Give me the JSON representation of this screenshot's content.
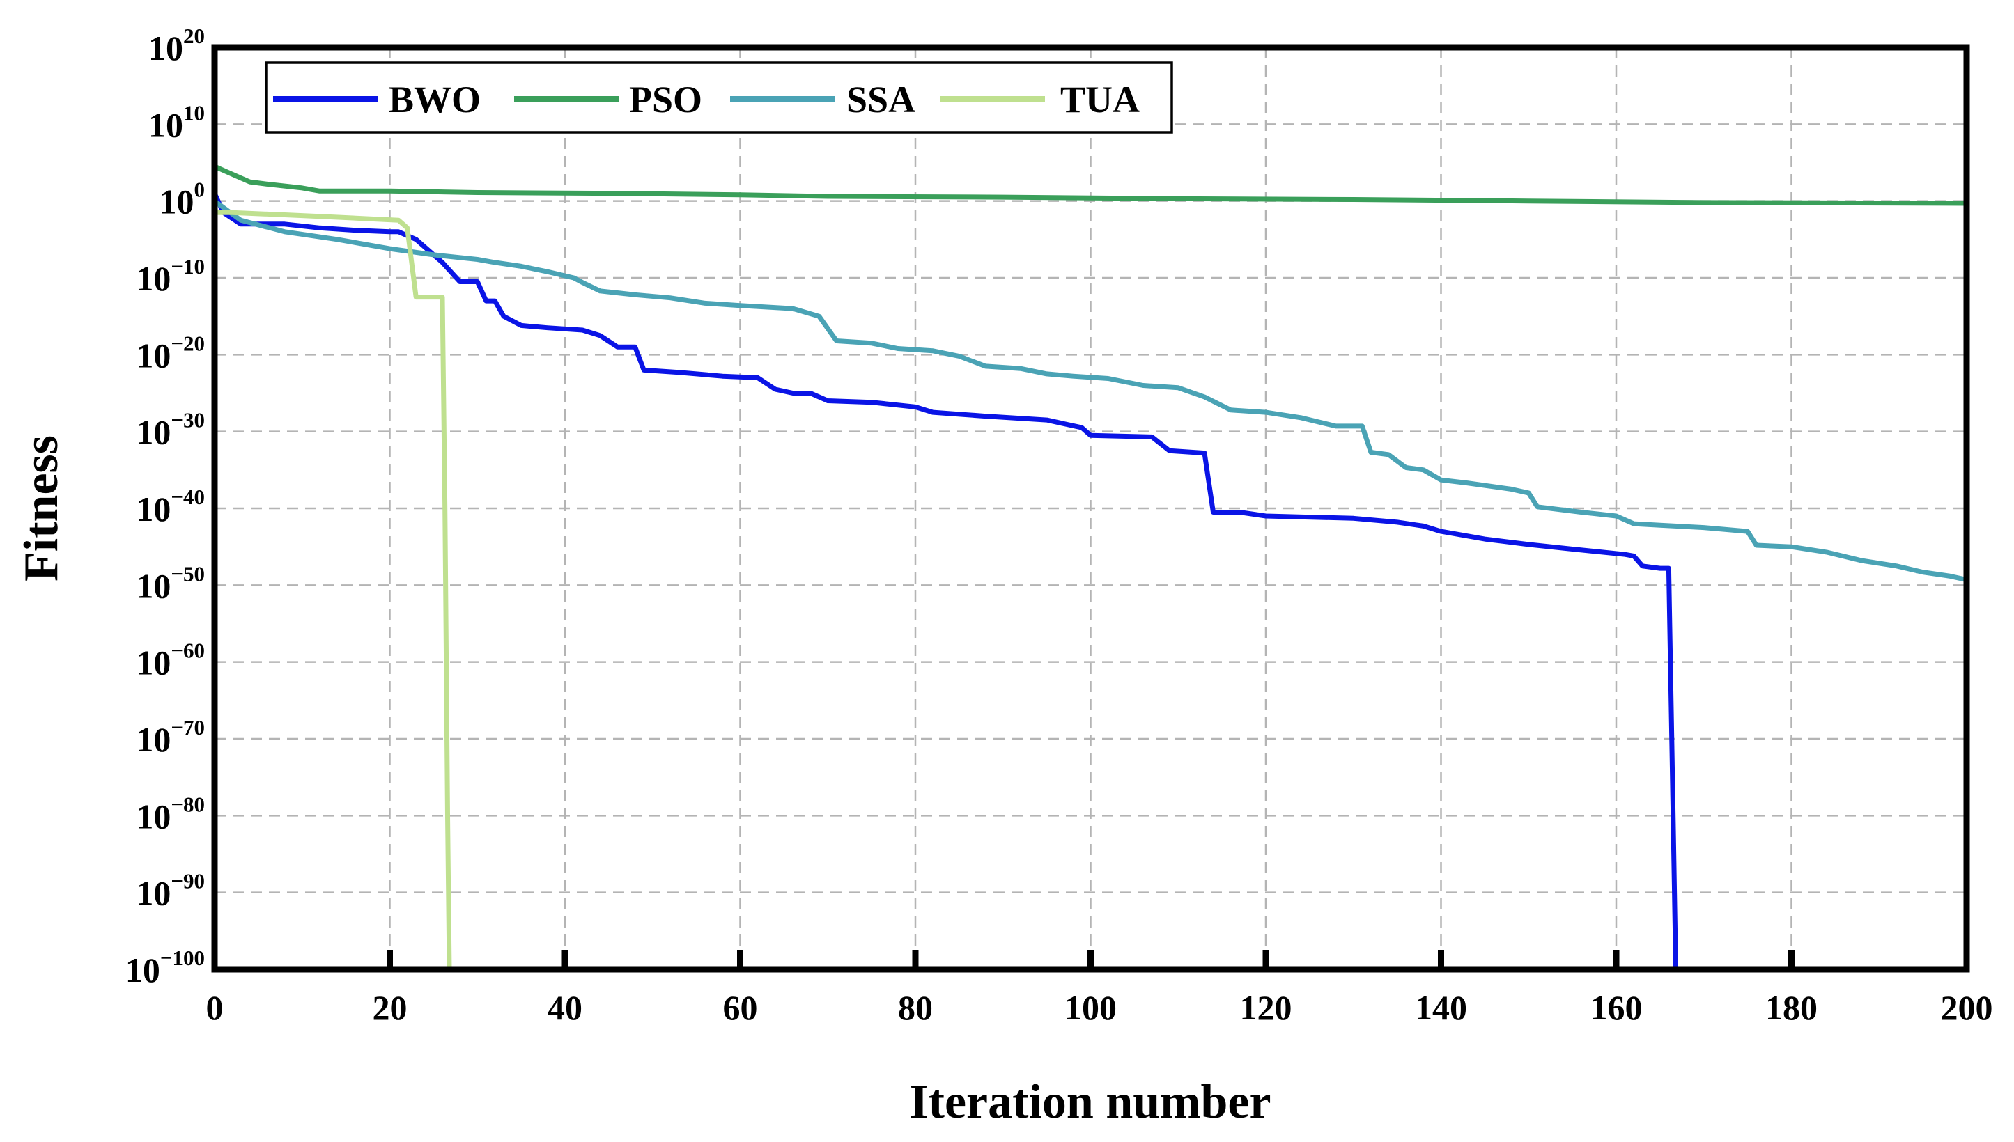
{
  "chart_data": {
    "type": "line",
    "title": "",
    "xlabel": "Iteration number",
    "ylabel": "Fitness",
    "xlim": [
      0,
      200
    ],
    "ylim_exponent": [
      -100,
      20
    ],
    "yscale": "log",
    "grid": true,
    "legend_position": "top-left",
    "x_ticks": [
      "0",
      "20",
      "40",
      "60",
      "80",
      "100",
      "120",
      "140",
      "160",
      "180",
      "200"
    ],
    "y_ticks": [
      {
        "base": "10",
        "exp": "20"
      },
      {
        "base": "10",
        "exp": "10"
      },
      {
        "base": "10",
        "exp": "0"
      },
      {
        "base": "10",
        "exp": "−10"
      },
      {
        "base": "10",
        "exp": "−20"
      },
      {
        "base": "10",
        "exp": "−30"
      },
      {
        "base": "10",
        "exp": "−40"
      },
      {
        "base": "10",
        "exp": "−50"
      },
      {
        "base": "10",
        "exp": "−60"
      },
      {
        "base": "10",
        "exp": "−70"
      },
      {
        "base": "10",
        "exp": "−80"
      },
      {
        "base": "10",
        "exp": "−90"
      },
      {
        "base": "10",
        "exp": "−100"
      }
    ],
    "series": [
      {
        "name": "BWO",
        "color": "#0a14e6",
        "points_x_log10y": [
          [
            0,
            1
          ],
          [
            1,
            -1.5
          ],
          [
            3,
            -3
          ],
          [
            8,
            -3
          ],
          [
            12,
            -3.5
          ],
          [
            16,
            -3.8
          ],
          [
            20,
            -4
          ],
          [
            21,
            -4
          ],
          [
            23,
            -5
          ],
          [
            26,
            -8
          ],
          [
            28,
            -10.5
          ],
          [
            30,
            -10.5
          ],
          [
            31,
            -13
          ],
          [
            32,
            -13
          ],
          [
            33,
            -15
          ],
          [
            35,
            -16.2
          ],
          [
            38,
            -16.5
          ],
          [
            42,
            -16.8
          ],
          [
            44,
            -17.5
          ],
          [
            46,
            -19
          ],
          [
            48,
            -19
          ],
          [
            49,
            -22
          ],
          [
            53,
            -22.3
          ],
          [
            58,
            -22.8
          ],
          [
            62,
            -23
          ],
          [
            64,
            -24.5
          ],
          [
            66,
            -25
          ],
          [
            68,
            -25
          ],
          [
            70,
            -26
          ],
          [
            75,
            -26.2
          ],
          [
            80,
            -26.8
          ],
          [
            82,
            -27.5
          ],
          [
            88,
            -28
          ],
          [
            95,
            -28.5
          ],
          [
            99,
            -29.5
          ],
          [
            100,
            -30.5
          ],
          [
            107,
            -30.7
          ],
          [
            109,
            -32.5
          ],
          [
            113,
            -32.8
          ],
          [
            114,
            -40.5
          ],
          [
            117,
            -40.5
          ],
          [
            120,
            -41
          ],
          [
            130,
            -41.3
          ],
          [
            135,
            -41.8
          ],
          [
            138,
            -42.3
          ],
          [
            140,
            -43
          ],
          [
            145,
            -44
          ],
          [
            150,
            -44.7
          ],
          [
            155,
            -45.3
          ],
          [
            161,
            -46
          ],
          [
            162,
            -46.2
          ],
          [
            163,
            -47.5
          ],
          [
            165,
            -47.8
          ],
          [
            166,
            -47.8
          ],
          [
            166.5,
            -80
          ],
          [
            166.8,
            -100
          ]
        ]
      },
      {
        "name": "PSO",
        "color": "#3a9f5a",
        "points_x_log10y": [
          [
            0,
            4.5
          ],
          [
            2,
            3.5
          ],
          [
            4,
            2.5
          ],
          [
            6,
            2.2
          ],
          [
            10,
            1.7
          ],
          [
            12,
            1.3
          ],
          [
            20,
            1.3
          ],
          [
            30,
            1.1
          ],
          [
            45,
            1
          ],
          [
            60,
            0.8
          ],
          [
            70,
            0.6
          ],
          [
            90,
            0.5
          ],
          [
            110,
            0.3
          ],
          [
            130,
            0.2
          ],
          [
            150,
            0
          ],
          [
            170,
            -0.2
          ],
          [
            200,
            -0.3
          ]
        ]
      },
      {
        "name": "SSA",
        "color": "#4aa3b5",
        "points_x_log10y": [
          [
            0,
            0
          ],
          [
            3,
            -2.5
          ],
          [
            8,
            -4
          ],
          [
            14,
            -5
          ],
          [
            20,
            -6.2
          ],
          [
            25,
            -7
          ],
          [
            30,
            -7.6
          ],
          [
            32,
            -8
          ],
          [
            35,
            -8.5
          ],
          [
            38,
            -9.2
          ],
          [
            41,
            -10
          ],
          [
            42,
            -10.6
          ],
          [
            44,
            -11.7
          ],
          [
            48,
            -12.2
          ],
          [
            52,
            -12.6
          ],
          [
            56,
            -13.3
          ],
          [
            60,
            -13.6
          ],
          [
            66,
            -14
          ],
          [
            69,
            -15
          ],
          [
            71,
            -18.2
          ],
          [
            75,
            -18.5
          ],
          [
            78,
            -19.2
          ],
          [
            82,
            -19.5
          ],
          [
            85,
            -20.2
          ],
          [
            88,
            -21.5
          ],
          [
            92,
            -21.8
          ],
          [
            95,
            -22.5
          ],
          [
            98,
            -22.8
          ],
          [
            102,
            -23.1
          ],
          [
            106,
            -24
          ],
          [
            110,
            -24.3
          ],
          [
            113,
            -25.5
          ],
          [
            116,
            -27.2
          ],
          [
            120,
            -27.5
          ],
          [
            124,
            -28.2
          ],
          [
            128,
            -29.3
          ],
          [
            131,
            -29.3
          ],
          [
            132,
            -32.7
          ],
          [
            134,
            -33
          ],
          [
            136,
            -34.7
          ],
          [
            138,
            -35
          ],
          [
            140,
            -36.3
          ],
          [
            143,
            -36.7
          ],
          [
            148,
            -37.5
          ],
          [
            150,
            -38
          ],
          [
            151,
            -39.8
          ],
          [
            156,
            -40.5
          ],
          [
            160,
            -41
          ],
          [
            162,
            -42
          ],
          [
            165,
            -42.2
          ],
          [
            170,
            -42.5
          ],
          [
            175,
            -43
          ],
          [
            176,
            -44.8
          ],
          [
            180,
            -45
          ],
          [
            184,
            -45.7
          ],
          [
            188,
            -46.8
          ],
          [
            192,
            -47.5
          ],
          [
            195,
            -48.3
          ],
          [
            198,
            -48.8
          ],
          [
            200,
            -49.3
          ]
        ]
      },
      {
        "name": "TUA",
        "color": "#bfe08f",
        "points_x_log10y": [
          [
            0,
            -1.5
          ],
          [
            2,
            -1.5
          ],
          [
            12,
            -2
          ],
          [
            21,
            -2.5
          ],
          [
            22,
            -3.5
          ],
          [
            23,
            -12.5
          ],
          [
            26,
            -12.5
          ],
          [
            26.3,
            -40
          ],
          [
            26.6,
            -80
          ],
          [
            26.8,
            -100
          ]
        ]
      }
    ]
  }
}
